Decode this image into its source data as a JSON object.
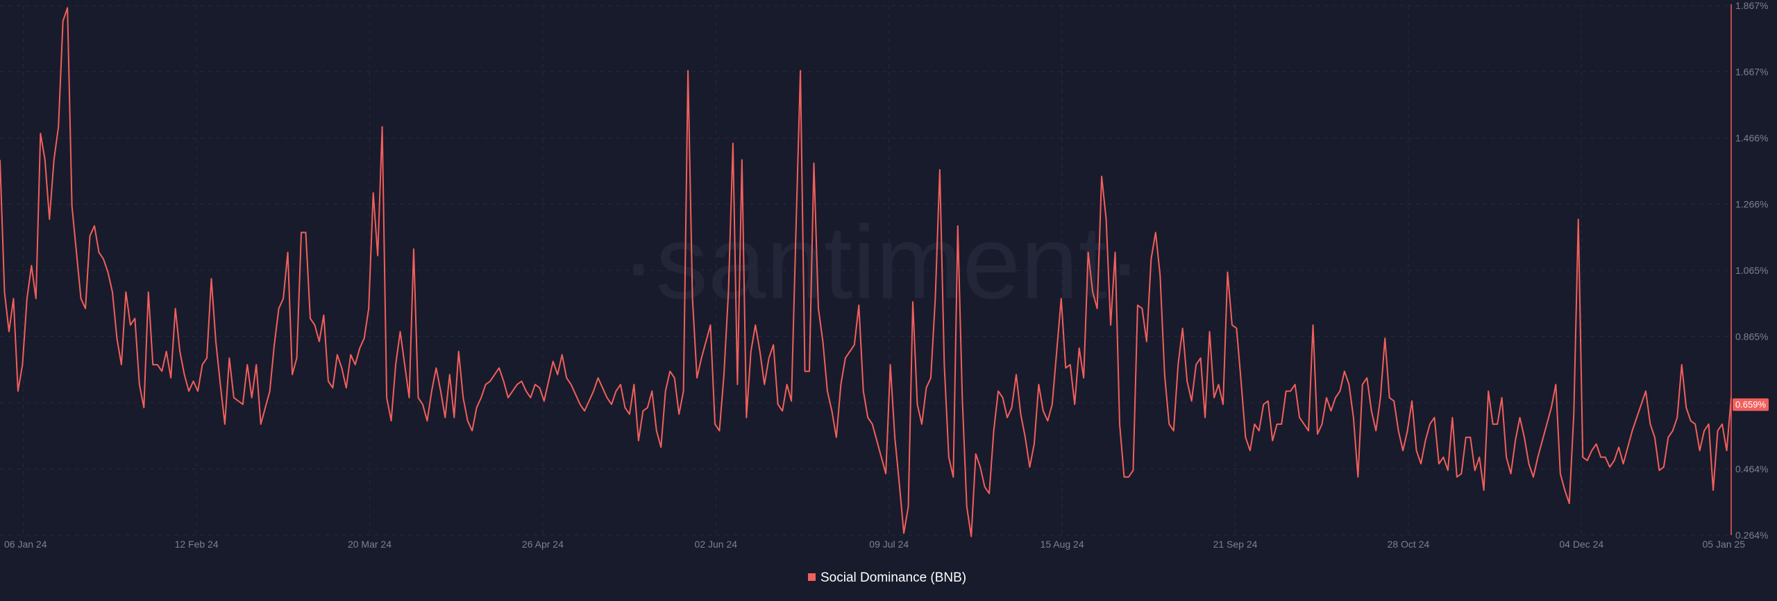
{
  "watermark": "·santiment·",
  "colors": {
    "background": "#181b2b",
    "line": "#f25f5c",
    "grid": "#262a3c",
    "tick": "#7c8092"
  },
  "chart_data": {
    "type": "line",
    "x_ticks": [
      "06 Jan 24",
      "12 Feb 24",
      "20 Mar 24",
      "26 Apr 24",
      "02 Jun 24",
      "09 Jul 24",
      "15 Aug 24",
      "21 Sep 24",
      "28 Oct 24",
      "04 Dec 24",
      "05 Jan 25"
    ],
    "y_ticks": [
      "0.264%",
      "0.464%",
      "0.665%",
      "0.865%",
      "1.065%",
      "1.266%",
      "1.466%",
      "1.667%",
      "1.867%"
    ],
    "ylim": [
      0.264,
      1.867
    ],
    "xlim": [
      "2024-01-01",
      "2025-01-05"
    ],
    "grid": true,
    "legend": {
      "position": "bottom",
      "label": "Social Dominance (BNB)"
    },
    "current_value_label": "0.659%",
    "series": [
      {
        "name": "Social Dominance (BNB)",
        "color": "#f25f5c",
        "start_date": "2024-01-01",
        "values": [
          1.4,
          1.0,
          0.88,
          0.98,
          0.7,
          0.78,
          0.98,
          1.08,
          0.98,
          1.48,
          1.4,
          1.22,
          1.4,
          1.5,
          1.82,
          1.86,
          1.26,
          1.12,
          0.98,
          0.95,
          1.17,
          1.2,
          1.12,
          1.1,
          1.06,
          1.0,
          0.86,
          0.78,
          1.0,
          0.9,
          0.92,
          0.72,
          0.65,
          1.0,
          0.78,
          0.78,
          0.76,
          0.82,
          0.74,
          0.95,
          0.82,
          0.75,
          0.7,
          0.73,
          0.7,
          0.78,
          0.8,
          1.04,
          0.85,
          0.72,
          0.6,
          0.8,
          0.68,
          0.67,
          0.66,
          0.78,
          0.68,
          0.78,
          0.6,
          0.65,
          0.7,
          0.84,
          0.95,
          0.98,
          1.12,
          0.75,
          0.8,
          1.18,
          1.18,
          0.92,
          0.9,
          0.85,
          0.93,
          0.73,
          0.71,
          0.81,
          0.77,
          0.71,
          0.81,
          0.78,
          0.83,
          0.86,
          0.95,
          1.3,
          1.11,
          1.5,
          0.68,
          0.61,
          0.78,
          0.88,
          0.78,
          0.68,
          1.13,
          0.68,
          0.66,
          0.61,
          0.7,
          0.77,
          0.7,
          0.62,
          0.75,
          0.62,
          0.82,
          0.68,
          0.61,
          0.58,
          0.65,
          0.68,
          0.72,
          0.73,
          0.75,
          0.77,
          0.73,
          0.68,
          0.7,
          0.72,
          0.73,
          0.7,
          0.68,
          0.72,
          0.71,
          0.67,
          0.73,
          0.79,
          0.75,
          0.81,
          0.74,
          0.72,
          0.69,
          0.66,
          0.64,
          0.67,
          0.7,
          0.74,
          0.71,
          0.68,
          0.66,
          0.7,
          0.72,
          0.65,
          0.63,
          0.72,
          0.55,
          0.64,
          0.65,
          0.7,
          0.58,
          0.53,
          0.7,
          0.76,
          0.74,
          0.63,
          0.7,
          1.67,
          0.98,
          0.74,
          0.8,
          0.85,
          0.9,
          0.6,
          0.58,
          0.75,
          1.0,
          1.45,
          0.72,
          1.4,
          0.62,
          0.82,
          0.9,
          0.82,
          0.72,
          0.8,
          0.84,
          0.66,
          0.64,
          0.72,
          0.67,
          1.18,
          1.67,
          0.76,
          0.76,
          1.39,
          0.95,
          0.85,
          0.7,
          0.64,
          0.56,
          0.72,
          0.8,
          0.82,
          0.84,
          0.96,
          0.7,
          0.62,
          0.6,
          0.55,
          0.5,
          0.45,
          0.78,
          0.56,
          0.42,
          0.27,
          0.35,
          0.97,
          0.66,
          0.6,
          0.71,
          0.74,
          0.98,
          1.37,
          0.78,
          0.5,
          0.44,
          1.2,
          0.68,
          0.35,
          0.26,
          0.51,
          0.47,
          0.41,
          0.39,
          0.58,
          0.7,
          0.68,
          0.62,
          0.65,
          0.75,
          0.63,
          0.56,
          0.47,
          0.54,
          0.72,
          0.64,
          0.61,
          0.66,
          0.82,
          0.98,
          0.77,
          0.78,
          0.66,
          0.83,
          0.74,
          1.12,
          1.0,
          0.95,
          1.35,
          1.22,
          0.9,
          1.12,
          0.6,
          0.44,
          0.44,
          0.46,
          0.96,
          0.95,
          0.85,
          1.1,
          1.18,
          1.05,
          0.75,
          0.6,
          0.58,
          0.78,
          0.89,
          0.73,
          0.67,
          0.78,
          0.8,
          0.62,
          0.88,
          0.68,
          0.72,
          0.66,
          1.06,
          0.9,
          0.89,
          0.73,
          0.56,
          0.52,
          0.6,
          0.58,
          0.66,
          0.67,
          0.55,
          0.6,
          0.6,
          0.7,
          0.7,
          0.72,
          0.62,
          0.6,
          0.58,
          0.9,
          0.57,
          0.6,
          0.68,
          0.64,
          0.68,
          0.7,
          0.76,
          0.72,
          0.62,
          0.44,
          0.72,
          0.74,
          0.64,
          0.58,
          0.68,
          0.86,
          0.68,
          0.67,
          0.58,
          0.52,
          0.58,
          0.67,
          0.52,
          0.48,
          0.55,
          0.6,
          0.62,
          0.48,
          0.5,
          0.46,
          0.62,
          0.44,
          0.45,
          0.56,
          0.56,
          0.46,
          0.5,
          0.4,
          0.7,
          0.6,
          0.6,
          0.68,
          0.5,
          0.45,
          0.55,
          0.62,
          0.56,
          0.48,
          0.44,
          0.5,
          0.55,
          0.6,
          0.65,
          0.72,
          0.45,
          0.4,
          0.36,
          0.63,
          1.22,
          0.5,
          0.49,
          0.52,
          0.54,
          0.5,
          0.5,
          0.47,
          0.49,
          0.53,
          0.48,
          0.53,
          0.58,
          0.62,
          0.66,
          0.7,
          0.6,
          0.56,
          0.46,
          0.47,
          0.56,
          0.58,
          0.62,
          0.78,
          0.65,
          0.61,
          0.6,
          0.52,
          0.58,
          0.6,
          0.4,
          0.58,
          0.6,
          0.52,
          0.68
        ]
      }
    ]
  }
}
